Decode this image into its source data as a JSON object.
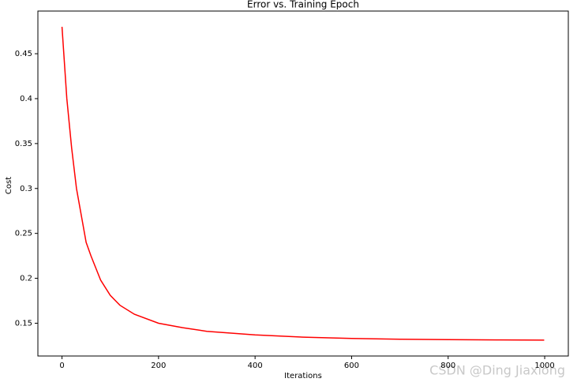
{
  "chart_data": {
    "type": "line",
    "title": "Error vs. Training Epoch",
    "xlabel": "Iterations",
    "ylabel": "Cost",
    "watermark": "CSDN @Ding Jiaxiong",
    "x": [
      0,
      10,
      20,
      30,
      40,
      50,
      60,
      80,
      100,
      120,
      150,
      200,
      250,
      300,
      400,
      500,
      600,
      700,
      800,
      900,
      999
    ],
    "series": [
      {
        "name": "cost",
        "color": "#ff0000",
        "values": [
          0.48,
          0.4,
          0.345,
          0.3,
          0.27,
          0.24,
          0.225,
          0.198,
          0.181,
          0.17,
          0.16,
          0.15,
          0.145,
          0.141,
          0.137,
          0.1345,
          0.133,
          0.1322,
          0.1317,
          0.1314,
          0.1312
        ]
      }
    ],
    "xlim": [
      -49.95,
      1048.95
    ],
    "xticks": [
      0,
      200,
      400,
      600,
      800,
      1000
    ],
    "ylim": [
      0.1135,
      0.4975
    ],
    "yticks": [
      0.15,
      0.2,
      0.25,
      0.3,
      0.35,
      0.4,
      0.45
    ],
    "grid": false,
    "legend": false
  }
}
